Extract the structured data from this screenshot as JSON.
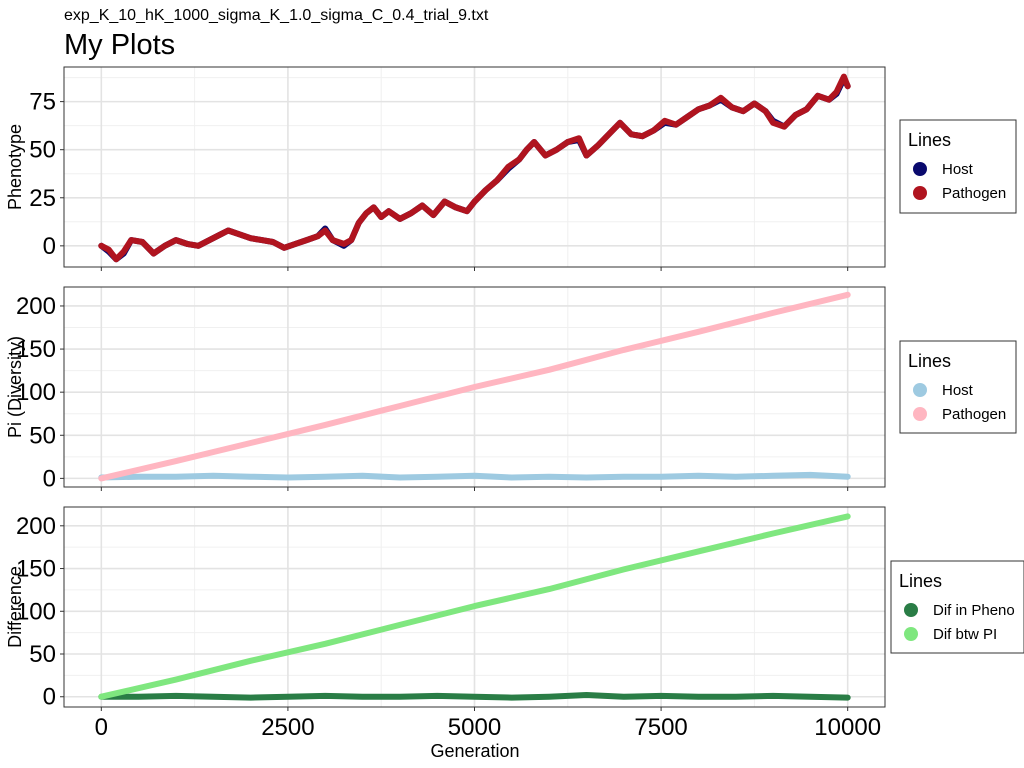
{
  "subtitle": "exp_K_10_hK_1000_sigma_K_1.0_sigma_C_0.4_trial_9.txt",
  "title": "My Plots",
  "xlabel": "Generation",
  "chart_data": [
    {
      "type": "line",
      "ylabel": "Phenotype",
      "xlim": [
        -500,
        10500
      ],
      "ylim": [
        -11,
        93
      ],
      "x_ticks": [
        0,
        2500,
        5000,
        7500,
        10000
      ],
      "y_ticks": [
        0,
        25,
        50,
        75
      ],
      "grid": true,
      "legend": {
        "title": "Lines",
        "position": "right"
      },
      "series": [
        {
          "name": "Host",
          "color": "#0a0a6e",
          "x": [
            0,
            100,
            200,
            300,
            400,
            550,
            700,
            850,
            1000,
            1150,
            1300,
            1450,
            1600,
            1700,
            1850,
            2000,
            2150,
            2300,
            2450,
            2600,
            2750,
            2900,
            3000,
            3100,
            3250,
            3350,
            3450,
            3550,
            3650,
            3750,
            3850,
            4000,
            4150,
            4300,
            4450,
            4600,
            4750,
            4900,
            5000,
            5150,
            5300,
            5450,
            5600,
            5700,
            5800,
            5950,
            6100,
            6250,
            6400,
            6500,
            6650,
            6800,
            6950,
            7100,
            7250,
            7400,
            7550,
            7700,
            7850,
            8000,
            8150,
            8300,
            8450,
            8600,
            8750,
            8900,
            9000,
            9150,
            9300,
            9450,
            9600,
            9750,
            9850,
            9950,
            10000
          ],
          "y": [
            0,
            -3,
            -7,
            -4,
            3,
            2,
            -4,
            0,
            3,
            1,
            0,
            3,
            6,
            8,
            6,
            4,
            3,
            2,
            -1,
            1,
            3,
            5,
            9,
            3,
            0,
            3,
            12,
            17,
            20,
            15,
            18,
            14,
            17,
            21,
            16,
            23,
            20,
            18,
            23,
            29,
            34,
            40,
            45,
            50,
            54,
            47,
            50,
            54,
            55,
            47,
            52,
            58,
            64,
            58,
            57,
            60,
            64,
            63,
            67,
            71,
            73,
            76,
            72,
            70,
            74,
            70,
            65,
            62,
            68,
            71,
            78,
            76,
            79,
            87,
            83
          ]
        },
        {
          "name": "Pathogen",
          "color": "#b0141f",
          "x": [
            0,
            100,
            200,
            300,
            400,
            550,
            700,
            850,
            1000,
            1150,
            1300,
            1450,
            1600,
            1700,
            1850,
            2000,
            2150,
            2300,
            2450,
            2600,
            2750,
            2900,
            3000,
            3100,
            3250,
            3350,
            3450,
            3550,
            3650,
            3750,
            3850,
            4000,
            4150,
            4300,
            4450,
            4600,
            4750,
            4900,
            5000,
            5150,
            5300,
            5450,
            5600,
            5700,
            5800,
            5950,
            6100,
            6250,
            6400,
            6500,
            6650,
            6800,
            6950,
            7100,
            7250,
            7400,
            7550,
            7700,
            7850,
            8000,
            8150,
            8300,
            8450,
            8600,
            8750,
            8900,
            9000,
            9150,
            9300,
            9450,
            9600,
            9750,
            9850,
            9950,
            10000
          ],
          "y": [
            0,
            -2,
            -7,
            -3,
            3,
            2,
            -4,
            0,
            3,
            1,
            0,
            3,
            6,
            8,
            6,
            4,
            3,
            2,
            -1,
            1,
            3,
            5,
            8,
            3,
            1,
            3,
            12,
            17,
            20,
            15,
            18,
            14,
            17,
            21,
            16,
            23,
            20,
            18,
            23,
            29,
            34,
            41,
            45,
            50,
            54,
            47,
            50,
            54,
            56,
            47,
            52,
            58,
            64,
            58,
            57,
            60,
            65,
            63,
            67,
            71,
            73,
            77,
            72,
            70,
            74,
            70,
            64,
            62,
            68,
            71,
            78,
            76,
            80,
            88,
            83
          ]
        }
      ]
    },
    {
      "type": "line",
      "ylabel": "Pi (Diversity)",
      "xlim": [
        -500,
        10500
      ],
      "ylim": [
        -10,
        222
      ],
      "x_ticks": [
        0,
        2500,
        5000,
        7500,
        10000
      ],
      "y_ticks": [
        0,
        50,
        100,
        150,
        200
      ],
      "grid": true,
      "legend": {
        "title": "Lines",
        "position": "right"
      },
      "series": [
        {
          "name": "Host",
          "color": "#9ecae1",
          "x": [
            0,
            500,
            1000,
            1500,
            2000,
            2500,
            3000,
            3500,
            4000,
            4500,
            5000,
            5500,
            6000,
            6500,
            7000,
            7500,
            8000,
            8500,
            9000,
            9500,
            10000
          ],
          "y": [
            1,
            2,
            2,
            3,
            2,
            1,
            2,
            3,
            1,
            2,
            3,
            1,
            2,
            1,
            2,
            2,
            3,
            2,
            3,
            4,
            2
          ]
        },
        {
          "name": "Pathogen",
          "color": "#ffb6c1",
          "x": [
            0,
            1000,
            2000,
            3000,
            4000,
            5000,
            6000,
            7000,
            8000,
            9000,
            10000
          ],
          "y": [
            0,
            20,
            41,
            62,
            84,
            106,
            126,
            149,
            170,
            192,
            213
          ]
        }
      ]
    },
    {
      "type": "line",
      "ylabel": "Difference",
      "xlim": [
        -500,
        10500
      ],
      "ylim": [
        -12,
        222
      ],
      "x_ticks": [
        0,
        2500,
        5000,
        7500,
        10000
      ],
      "y_ticks": [
        0,
        50,
        100,
        150,
        200
      ],
      "grid": true,
      "legend": {
        "title": "Lines",
        "position": "right"
      },
      "series": [
        {
          "name": "Dif in Pheno",
          "color": "#2a7d46",
          "x": [
            0,
            500,
            1000,
            1500,
            2000,
            2500,
            3000,
            3500,
            4000,
            4500,
            5000,
            5500,
            6000,
            6500,
            7000,
            7500,
            8000,
            8500,
            9000,
            9500,
            10000
          ],
          "y": [
            0,
            0,
            1,
            0,
            -1,
            0,
            1,
            0,
            0,
            1,
            0,
            -1,
            0,
            2,
            0,
            1,
            0,
            0,
            1,
            0,
            -1
          ]
        },
        {
          "name": "Dif btw PI",
          "color": "#7fe77f",
          "x": [
            0,
            1000,
            2000,
            3000,
            4000,
            5000,
            6000,
            7000,
            8000,
            9000,
            10000
          ],
          "y": [
            0,
            20,
            42,
            62,
            84,
            106,
            126,
            149,
            170,
            191,
            211
          ]
        }
      ]
    }
  ]
}
